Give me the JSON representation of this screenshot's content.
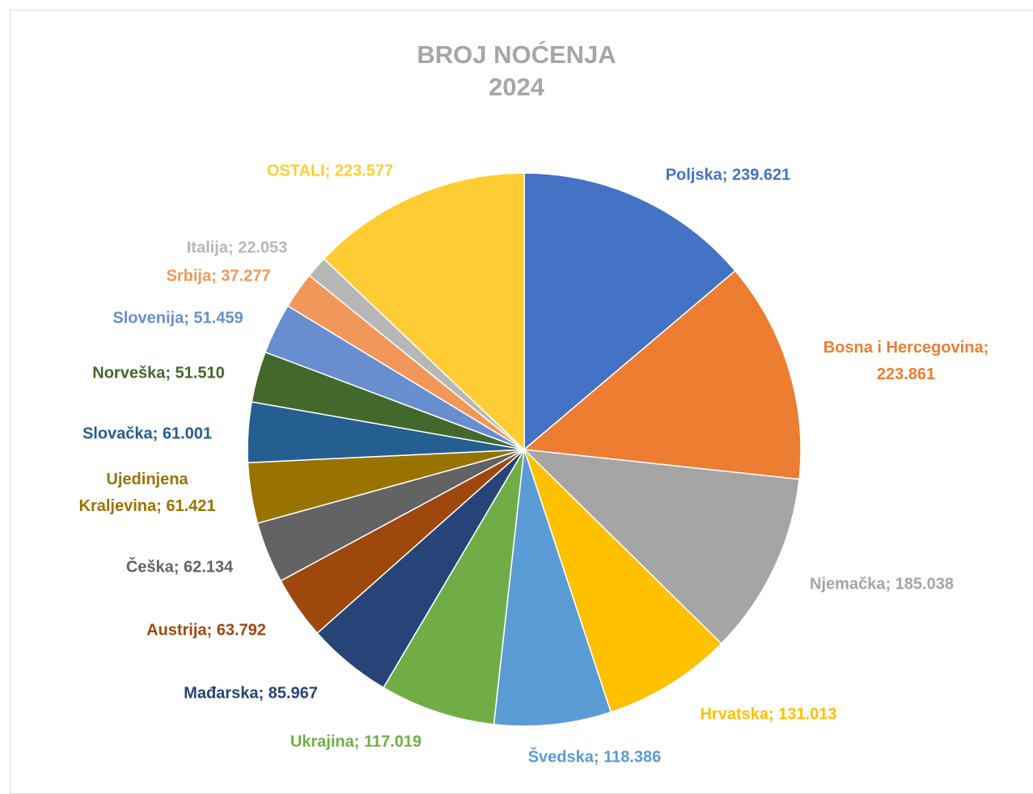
{
  "chart_data": {
    "type": "pie",
    "title": "BROJ NOĆENJA",
    "subtitle": "2024",
    "categories": [
      "Poljska",
      "Bosna i Hercegovina",
      "Njemačka",
      "Hrvatska",
      "Švedska",
      "Ukrajina",
      "Mađarska",
      "Austrija",
      "Češka",
      "Ujedinjena Kraljevina",
      "Slovačka",
      "Norveška",
      "Slovenija",
      "Srbija",
      "Italija",
      "OSTALI"
    ],
    "values": [
      239621,
      223861,
      185038,
      131013,
      118386,
      117019,
      85967,
      63792,
      62134,
      61421,
      61001,
      51510,
      51459,
      37277,
      22053,
      223577
    ],
    "value_labels": [
      "Poljska; 239.621",
      "Bosna i Hercegovina; 223.861",
      "Njemačka; 185.038",
      "Hrvatska; 131.013",
      "Švedska; 118.386",
      "Ukrajina; 117.019",
      "Mađarska; 85.967",
      "Austrija; 63.792",
      "Češka; 62.134",
      "Ujedinjena Kraljevina; 61.421",
      "Slovačka; 61.001",
      "Norveška; 51.510",
      "Slovenija; 51.459",
      "Srbija; 37.277",
      "Italija; 22.053",
      "OSTALI; 223.577"
    ],
    "colors": [
      "#4472c4",
      "#ed7d31",
      "#a5a5a5",
      "#ffc000",
      "#5b9bd5",
      "#70ad47",
      "#264478",
      "#9e480e",
      "#636363",
      "#997300",
      "#255e91",
      "#43682b",
      "#698ed0",
      "#f1975a",
      "#b7b7b7",
      "#ffcd33"
    ]
  }
}
